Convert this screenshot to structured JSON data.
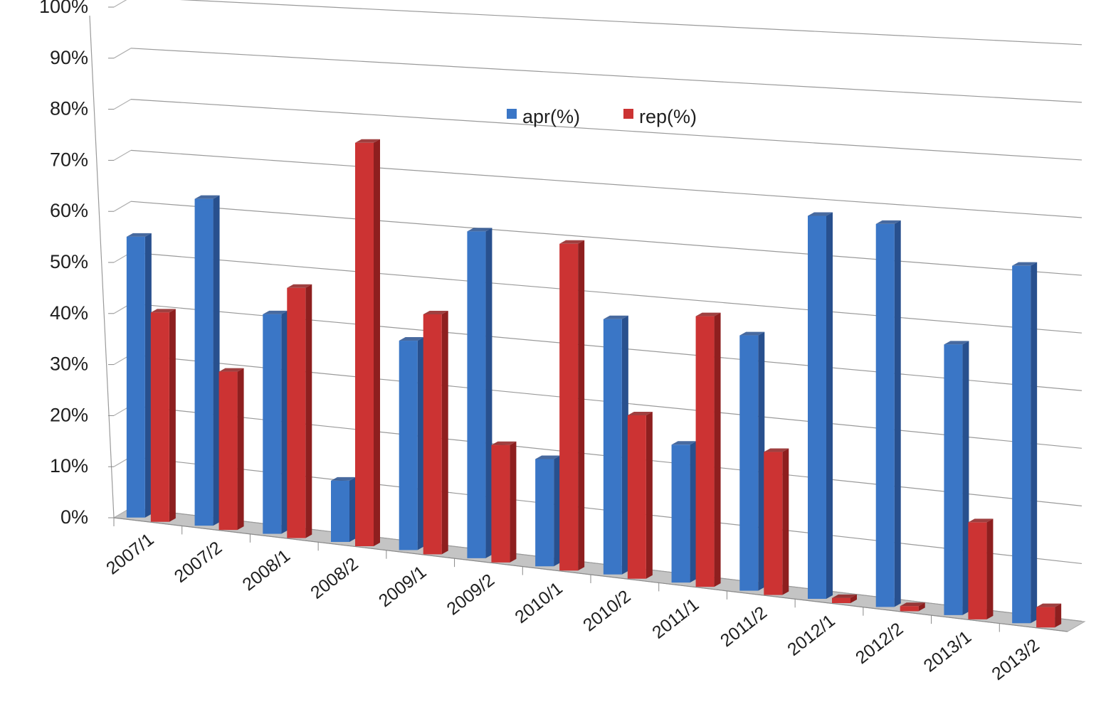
{
  "chart_data": {
    "type": "bar",
    "categories": [
      "2007/1",
      "2007/2",
      "2008/1",
      "2008/2",
      "2009/1",
      "2009/2",
      "2010/1",
      "2010/2",
      "2011/1",
      "2011/2",
      "2012/1",
      "2012/2",
      "2013/1",
      "2013/2"
    ],
    "series": [
      {
        "name": "apr(%)",
        "color": "#3a76c6",
        "values": [
          55,
          64,
          43,
          12,
          41,
          64,
          21,
          50,
          27,
          50,
          75,
          75,
          53,
          70
        ]
      },
      {
        "name": "rep(%)",
        "color": "#cc3333",
        "values": [
          41,
          31,
          49,
          79,
          47,
          23,
          64,
          32,
          53,
          28,
          1,
          1,
          19,
          4
        ]
      }
    ],
    "y_ticks": [
      "0%",
      "10%",
      "20%",
      "30%",
      "40%",
      "50%",
      "60%",
      "70%",
      "80%",
      "90%",
      "100%"
    ],
    "ylim": [
      0,
      100
    ],
    "grid": true,
    "legend": "top-center",
    "style": "3d-clustered-column"
  }
}
